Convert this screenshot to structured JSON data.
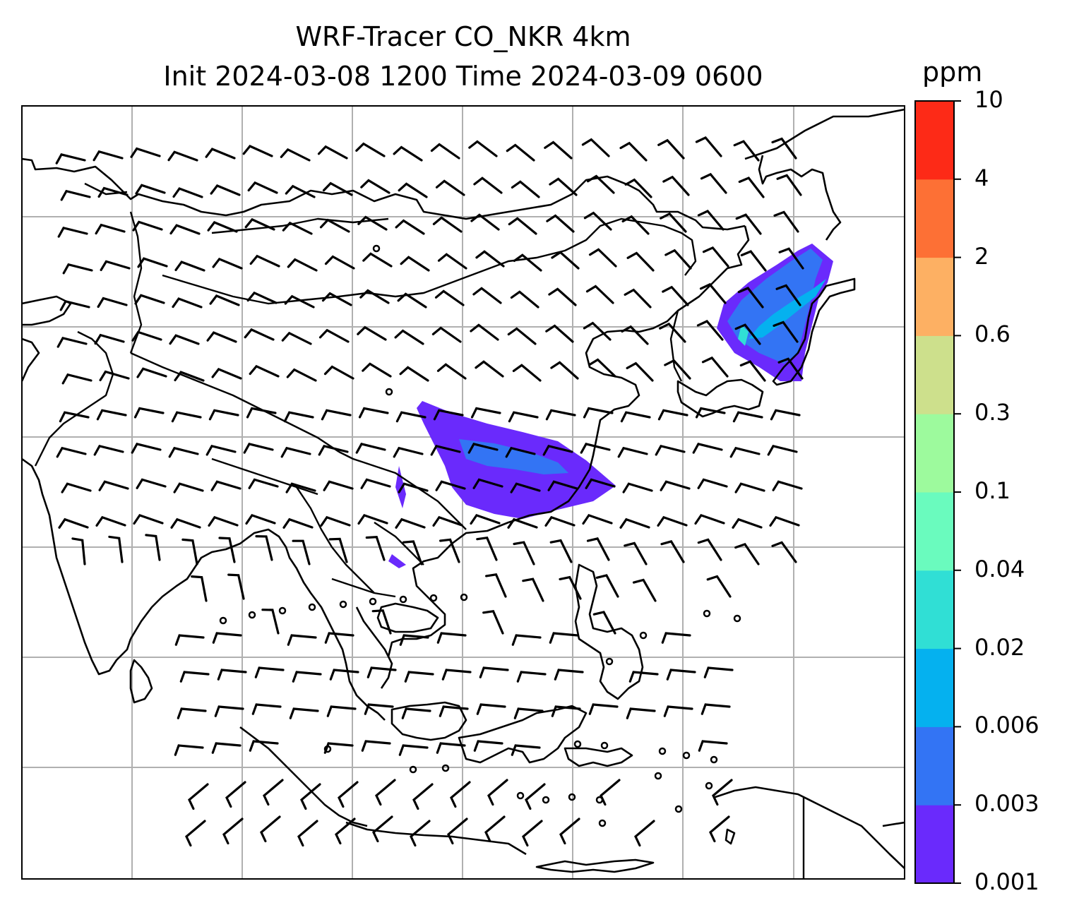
{
  "title_line1": "WRF-Tracer CO_NKR 4km",
  "title_line2": "Init 2024-03-08 1200 Time 2024-03-09 0600",
  "colorbar": {
    "unit": "ppm",
    "levels": [
      "0.001",
      "0.003",
      "0.006",
      "0.02",
      "0.04",
      "0.1",
      "0.3",
      "0.6",
      "2",
      "4",
      "10"
    ],
    "colors": [
      "#6a2afc",
      "#3374f4",
      "#05b1ef",
      "#30dfd5",
      "#6afbbe",
      "#9dfa9d",
      "#cde08c",
      "#fdb063",
      "#fd7035",
      "#fd2a17"
    ]
  }
}
